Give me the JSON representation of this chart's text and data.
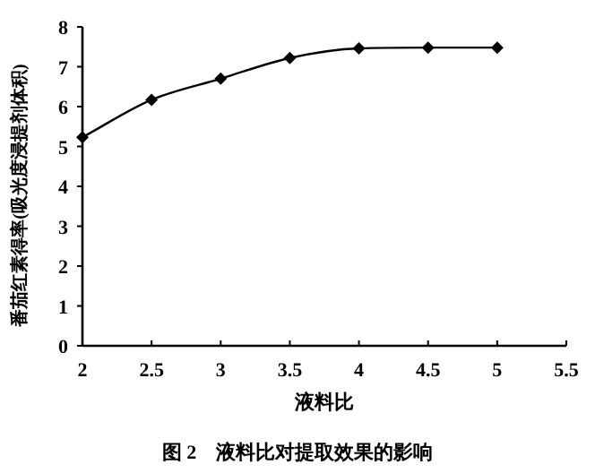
{
  "chart_data": {
    "type": "line",
    "title": "图 2　液料比对提取效果的影响",
    "xlabel": "液料比",
    "ylabel": "番茄红素得率(吸光度浸提剂体积)",
    "x": [
      2,
      2.5,
      3,
      3.5,
      4,
      4.5,
      5
    ],
    "series": [
      {
        "color": "#000000",
        "values": [
          5.23,
          6.17,
          6.7,
          7.22,
          7.46,
          7.48,
          7.48
        ]
      }
    ],
    "xlim": [
      2,
      5.5
    ],
    "xticks": [
      2,
      2.5,
      3,
      3.5,
      4,
      4.5,
      5,
      5.5
    ],
    "ylim": [
      0,
      8
    ],
    "yticks": [
      0,
      1,
      2,
      3,
      4,
      5,
      6,
      7,
      8
    ],
    "marker": "diamond",
    "line_style": "solid",
    "grid": false
  }
}
